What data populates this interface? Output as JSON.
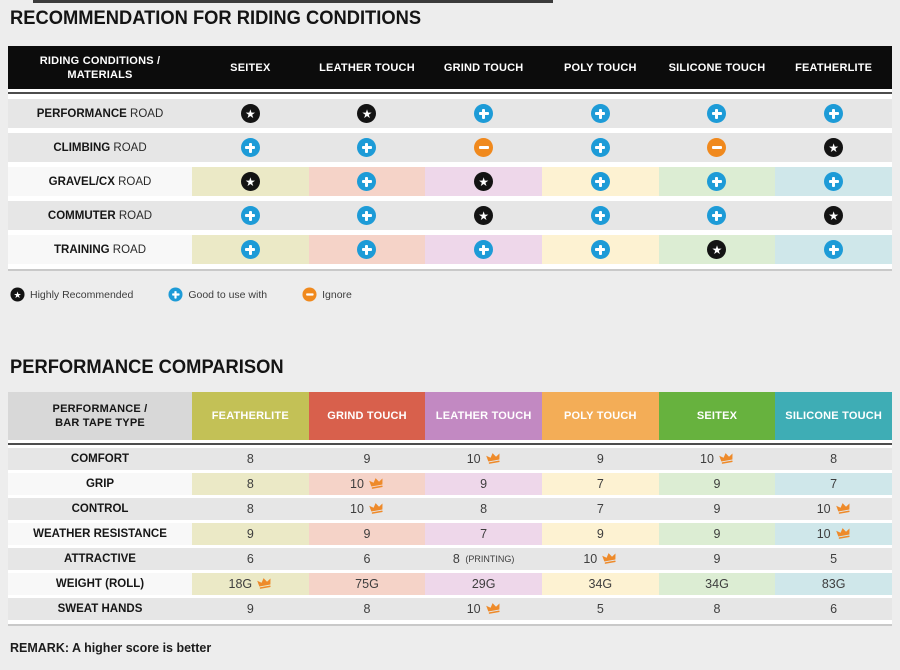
{
  "palette": {
    "page_bg": "#ededed",
    "row_gray": "#e6e6e6",
    "row_light": "#f8f8f8",
    "table1_header_bg": "#0c0c0c",
    "corner_gray": "#d8d8d8",
    "header_colors": [
      "#c3c156",
      "#d8604c",
      "#c289c2",
      "#f3ad57",
      "#67b23e",
      "#3eadb5"
    ],
    "row_tints": [
      "#ebe9c6",
      "#f5d3c8",
      "#eed7ea",
      "#fdf2d2",
      "#dcedd3",
      "#cfe7ea"
    ],
    "icon_star": "#131313",
    "icon_plus": "#1d9bd7",
    "icon_minus": "#f0891d",
    "crown": "#ee8a2a"
  },
  "chart_data": [
    {
      "type": "table",
      "title": "RECOMMENDATION FOR RIDING CONDITIONS",
      "corner_lines": [
        "RIDING CONDITIONS /",
        "MATERIALS"
      ],
      "columns": [
        "SEITEX",
        "LEATHER TOUCH",
        "GRIND TOUCH",
        "POLY TOUCH",
        "SILICONE TOUCH",
        "FEATHERLITE"
      ],
      "icon_meanings": {
        "star": "Highly Recommended",
        "plus": "Good to use with",
        "minus": "Ignore"
      },
      "rows": [
        {
          "label_bold": "PERFORMANCE",
          "label_rest": "ROAD",
          "tinted": false,
          "cells": [
            "star",
            "star",
            "plus",
            "plus",
            "plus",
            "plus"
          ]
        },
        {
          "label_bold": "CLIMBING",
          "label_rest": "ROAD",
          "tinted": false,
          "cells": [
            "plus",
            "plus",
            "minus",
            "plus",
            "minus",
            "star"
          ]
        },
        {
          "label_bold": "GRAVEL/CX",
          "label_rest": "ROAD",
          "tinted": true,
          "cells": [
            "star",
            "plus",
            "star",
            "plus",
            "plus",
            "plus"
          ]
        },
        {
          "label_bold": "COMMUTER",
          "label_rest": "ROAD",
          "tinted": false,
          "cells": [
            "plus",
            "plus",
            "star",
            "plus",
            "plus",
            "star"
          ]
        },
        {
          "label_bold": "TRAINING",
          "label_rest": "ROAD",
          "tinted": true,
          "cells": [
            "plus",
            "plus",
            "plus",
            "plus",
            "star",
            "plus"
          ]
        }
      ],
      "legend": [
        {
          "icon": "star",
          "label": "Highly Recommended"
        },
        {
          "icon": "plus",
          "label": "Good to use with"
        },
        {
          "icon": "minus",
          "label": "Ignore"
        }
      ]
    },
    {
      "type": "table",
      "title": "PERFORMANCE COMPARISON",
      "corner_lines": [
        "PERFORMANCE /",
        "BAR TAPE TYPE"
      ],
      "columns": [
        "FEATHERLITE",
        "GRIND TOUCH",
        "LEATHER TOUCH",
        "POLY TOUCH",
        "SEITEX",
        "SILICONE TOUCH"
      ],
      "rows": [
        {
          "label": "COMFORT",
          "tinted": false,
          "cells": [
            {
              "v": "8"
            },
            {
              "v": "9"
            },
            {
              "v": "10",
              "crown": true
            },
            {
              "v": "9"
            },
            {
              "v": "10",
              "crown": true
            },
            {
              "v": "8"
            }
          ]
        },
        {
          "label": "GRIP",
          "tinted": true,
          "cells": [
            {
              "v": "8"
            },
            {
              "v": "10",
              "crown": true
            },
            {
              "v": "9"
            },
            {
              "v": "7"
            },
            {
              "v": "9"
            },
            {
              "v": "7"
            }
          ]
        },
        {
          "label": "CONTROL",
          "tinted": false,
          "cells": [
            {
              "v": "8"
            },
            {
              "v": "10",
              "crown": true
            },
            {
              "v": "8"
            },
            {
              "v": "7"
            },
            {
              "v": "9"
            },
            {
              "v": "10",
              "crown": true
            }
          ]
        },
        {
          "label": "WEATHER RESISTANCE",
          "tinted": true,
          "cells": [
            {
              "v": "9"
            },
            {
              "v": "9"
            },
            {
              "v": "7"
            },
            {
              "v": "9"
            },
            {
              "v": "9"
            },
            {
              "v": "10",
              "crown": true
            }
          ]
        },
        {
          "label": "ATTRACTIVE",
          "tinted": false,
          "cells": [
            {
              "v": "6"
            },
            {
              "v": "6"
            },
            {
              "v": "8",
              "note": "(PRINTING)"
            },
            {
              "v": "10",
              "crown": true
            },
            {
              "v": "9"
            },
            {
              "v": "5"
            }
          ]
        },
        {
          "label": "WEIGHT (ROLL)",
          "tinted": true,
          "cells": [
            {
              "v": "18G",
              "crown": true
            },
            {
              "v": "75G"
            },
            {
              "v": "29G"
            },
            {
              "v": "34G"
            },
            {
              "v": "34G"
            },
            {
              "v": "83G"
            }
          ]
        },
        {
          "label": "SWEAT HANDS",
          "tinted": false,
          "cells": [
            {
              "v": "9"
            },
            {
              "v": "8"
            },
            {
              "v": "10",
              "crown": true
            },
            {
              "v": "5"
            },
            {
              "v": "8"
            },
            {
              "v": "6"
            }
          ]
        }
      ],
      "remark": "REMARK: A higher score is better"
    }
  ]
}
